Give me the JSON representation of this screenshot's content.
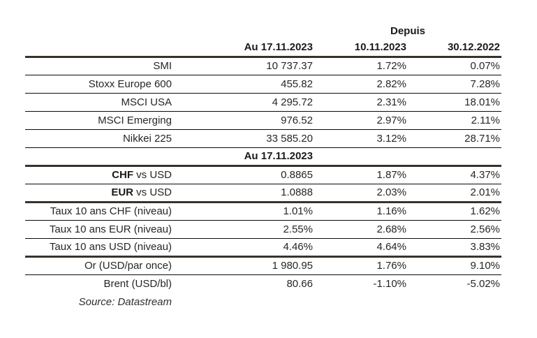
{
  "colors": {
    "thick_rule": "#38322b",
    "thin_rule": "#0a0a0a",
    "text": "#262626",
    "background": "#ffffff"
  },
  "table": {
    "depuis_label": "Depuis",
    "columns": [
      "Au 17.11.2023",
      "10.11.2023",
      "30.12.2022"
    ],
    "section2_header": "Au 17.11.2023",
    "rows": [
      {
        "label_bold": "",
        "label": "SMI",
        "v0": "10 737.37",
        "v1": "1.72%",
        "v2": "0.07%"
      },
      {
        "label_bold": "",
        "label": "Stoxx Europe 600",
        "v0": "455.82",
        "v1": "2.82%",
        "v2": "7.28%"
      },
      {
        "label_bold": "",
        "label": "MSCI USA",
        "v0": "4 295.72",
        "v1": "2.31%",
        "v2": "18.01%"
      },
      {
        "label_bold": "",
        "label": "MSCI Emerging",
        "v0": "976.52",
        "v1": "2.97%",
        "v2": "2.11%"
      },
      {
        "label_bold": "",
        "label": "Nikkei 225",
        "v0": "33 585.20",
        "v1": "3.12%",
        "v2": "28.71%"
      },
      {
        "label_bold": "CHF",
        "label": " vs USD",
        "v0": "0.8865",
        "v1": "1.87%",
        "v2": "4.37%"
      },
      {
        "label_bold": "EUR",
        "label": " vs USD",
        "v0": "1.0888",
        "v1": "2.03%",
        "v2": "2.01%"
      },
      {
        "label_bold": "",
        "label": "Taux 10 ans CHF (niveau)",
        "v0": "1.01%",
        "v1": "1.16%",
        "v2": "1.62%"
      },
      {
        "label_bold": "",
        "label": "Taux 10 ans EUR (niveau)",
        "v0": "2.55%",
        "v1": "2.68%",
        "v2": "2.56%"
      },
      {
        "label_bold": "",
        "label": "Taux 10 ans USD (niveau)",
        "v0": "4.46%",
        "v1": "4.64%",
        "v2": "3.83%"
      },
      {
        "label_bold": "",
        "label": "Or (USD/par once)",
        "v0": "1 980.95",
        "v1": "1.76%",
        "v2": "9.10%"
      },
      {
        "label_bold": "",
        "label": "Brent (USD/bl)",
        "v0": "80.66",
        "v1": "-1.10%",
        "v2": "-5.02%"
      }
    ],
    "source": "Source: Datastream"
  }
}
